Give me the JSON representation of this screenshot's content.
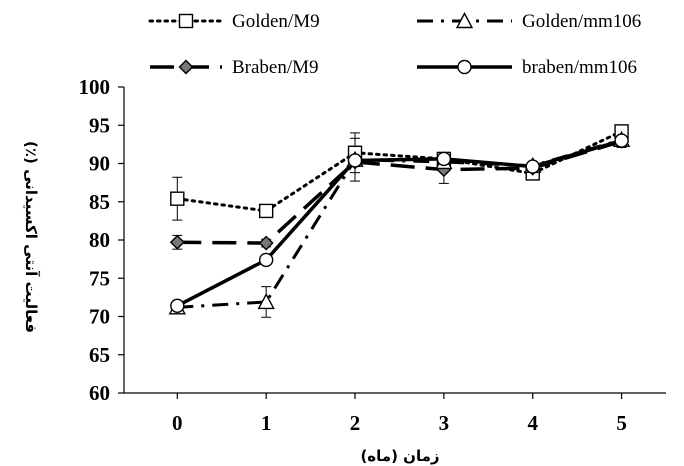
{
  "chart_data": {
    "type": "line",
    "title": "",
    "xlabel": "زمان (ماه)",
    "ylabel": "فعالیت آنتی اکسیدانی (٪)",
    "x": [
      0,
      1,
      2,
      3,
      4,
      5
    ],
    "xlim": [
      -0.6,
      5.5
    ],
    "ylim": [
      60,
      100
    ],
    "y_ticks": [
      60,
      65,
      70,
      75,
      80,
      85,
      90,
      95,
      100
    ],
    "grid": false,
    "legend_position": "top",
    "series": [
      {
        "name": "Golden/M9",
        "marker": "square",
        "dash": "dotted",
        "values": [
          85.4,
          83.8,
          91.4,
          90.6,
          88.7,
          94.2
        ],
        "errors": [
          2.8,
          0.6,
          2.6,
          0.8,
          0.6,
          0.8
        ]
      },
      {
        "name": "Braben/M9",
        "marker": "diamond",
        "dash": "long-dash",
        "values": [
          79.7,
          79.6,
          90.2,
          89.2,
          89.4,
          92.9
        ],
        "errors": [
          0.9,
          0.5,
          0.6,
          1.8,
          0.5,
          0.6
        ]
      },
      {
        "name": "Golden/mm106",
        "marker": "triangle",
        "dash": "dash-dot",
        "values": [
          71.2,
          71.9,
          90.5,
          90.2,
          89.7,
          93.1
        ],
        "errors": [
          0.5,
          2.0,
          2.8,
          0.6,
          0.5,
          0.6
        ]
      },
      {
        "name": "braben/mm106",
        "marker": "circle",
        "dash": "solid",
        "values": [
          71.4,
          77.4,
          90.4,
          90.6,
          89.6,
          93.0
        ],
        "errors": [
          0.5,
          0.6,
          0.7,
          0.6,
          0.6,
          0.9
        ]
      }
    ]
  }
}
